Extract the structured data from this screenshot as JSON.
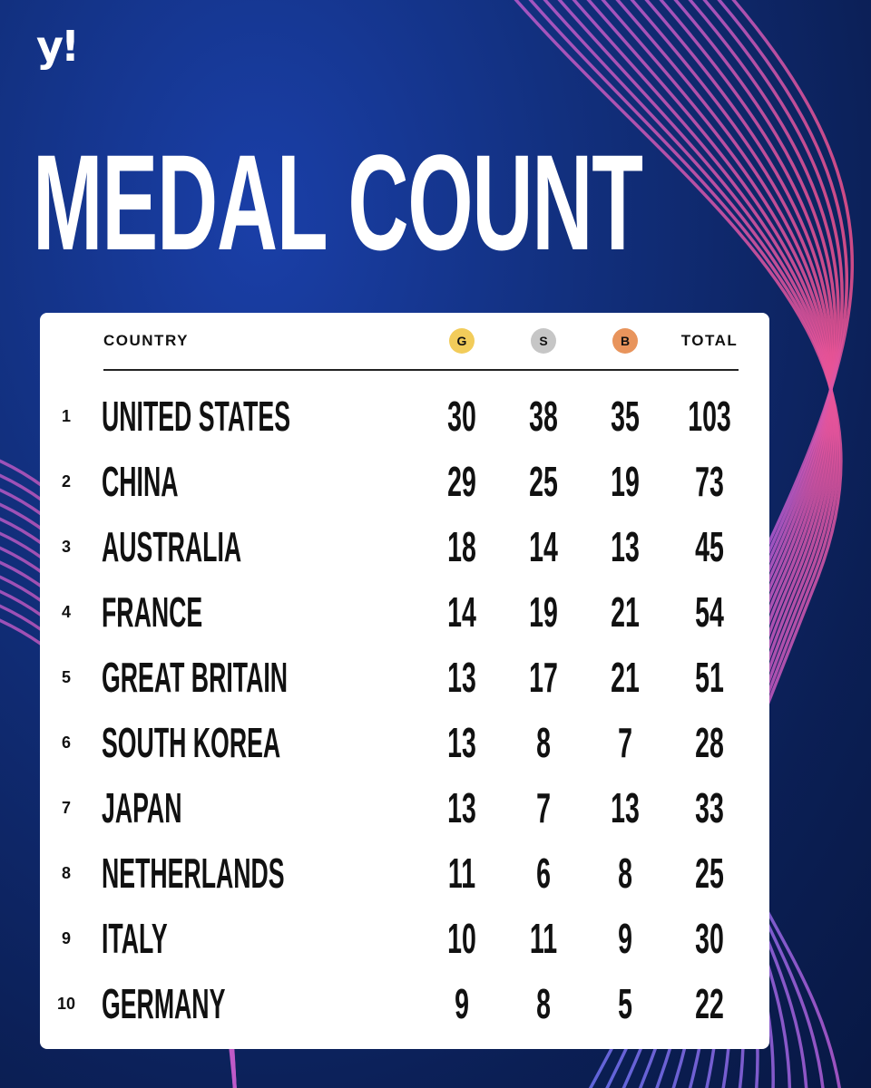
{
  "brand": {
    "logo_text": "y!"
  },
  "title": "MEDAL COUNT",
  "table": {
    "header": {
      "country": "COUNTRY",
      "gold": "G",
      "silver": "S",
      "bronze": "B",
      "total": "TOTAL"
    },
    "rows": [
      {
        "rank": "1",
        "country": "UNITED STATES",
        "gold": "30",
        "silver": "38",
        "bronze": "35",
        "total": "103"
      },
      {
        "rank": "2",
        "country": "CHINA",
        "gold": "29",
        "silver": "25",
        "bronze": "19",
        "total": "73"
      },
      {
        "rank": "3",
        "country": "AUSTRALIA",
        "gold": "18",
        "silver": "14",
        "bronze": "13",
        "total": "45"
      },
      {
        "rank": "4",
        "country": "FRANCE",
        "gold": "14",
        "silver": "19",
        "bronze": "21",
        "total": "54"
      },
      {
        "rank": "5",
        "country": "GREAT BRITAIN",
        "gold": "13",
        "silver": "17",
        "bronze": "21",
        "total": "51"
      },
      {
        "rank": "6",
        "country": "SOUTH KOREA",
        "gold": "13",
        "silver": "8",
        "bronze": "7",
        "total": "28"
      },
      {
        "rank": "7",
        "country": "JAPAN",
        "gold": "13",
        "silver": "7",
        "bronze": "13",
        "total": "33"
      },
      {
        "rank": "8",
        "country": "NETHERLANDS",
        "gold": "11",
        "silver": "6",
        "bronze": "8",
        "total": "25"
      },
      {
        "rank": "9",
        "country": "ITALY",
        "gold": "10",
        "silver": "11",
        "bronze": "9",
        "total": "30"
      },
      {
        "rank": "10",
        "country": "GERMANY",
        "gold": "9",
        "silver": "8",
        "bronze": "5",
        "total": "22"
      }
    ]
  },
  "colors": {
    "background": "#12307f",
    "gold_medal": "#f2cc5a",
    "silver_medal": "#c6c6c6",
    "bronze_medal": "#e8945c",
    "line_blue": "#4f7bff",
    "line_pink": "#ff4f7a"
  }
}
